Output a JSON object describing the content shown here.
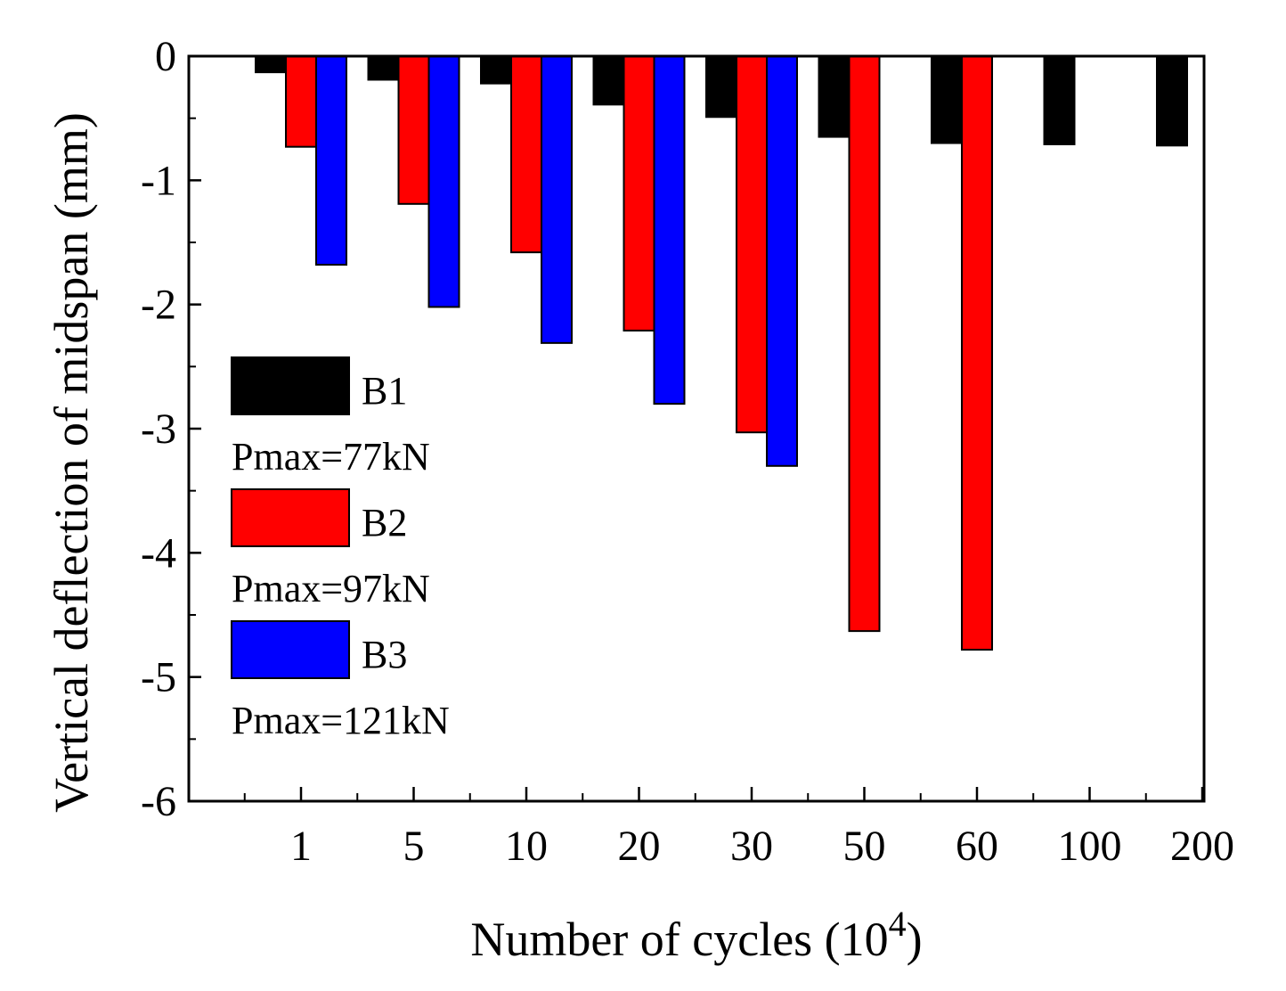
{
  "chart_data": {
    "type": "bar",
    "title": "",
    "xlabel": "Number of cycles (10",
    "xlabel_sup": "4",
    "xlabel_close": ")",
    "ylabel": "Vertical deflection of midspan (mm)",
    "ylim": [
      -6,
      0
    ],
    "yticks": [
      0,
      -1,
      -2,
      -3,
      -4,
      -5,
      -6
    ],
    "ytick_labels": [
      "0",
      "-1",
      "-2",
      "-3",
      "-4",
      "-5",
      "-6"
    ],
    "categories": [
      "1",
      "5",
      "10",
      "20",
      "30",
      "50",
      "60",
      "100",
      "200"
    ],
    "series": [
      {
        "name": "B1",
        "note": "Pmax=77kN",
        "color": "#000000",
        "values": [
          -0.13,
          -0.19,
          -0.22,
          -0.39,
          -0.49,
          -0.65,
          -0.7,
          -0.71,
          -0.72
        ]
      },
      {
        "name": "B2",
        "note": "Pmax=97kN",
        "color": "#ff0000",
        "values": [
          -0.73,
          -1.19,
          -1.58,
          -2.21,
          -3.03,
          -4.63,
          -4.78,
          null,
          null
        ]
      },
      {
        "name": "B3",
        "note": "Pmax=121kN",
        "color": "#0000ff",
        "values": [
          -1.68,
          -2.02,
          -2.31,
          -2.8,
          -3.3,
          null,
          null,
          null,
          null
        ]
      }
    ],
    "legend_position": "left",
    "grid": false
  }
}
